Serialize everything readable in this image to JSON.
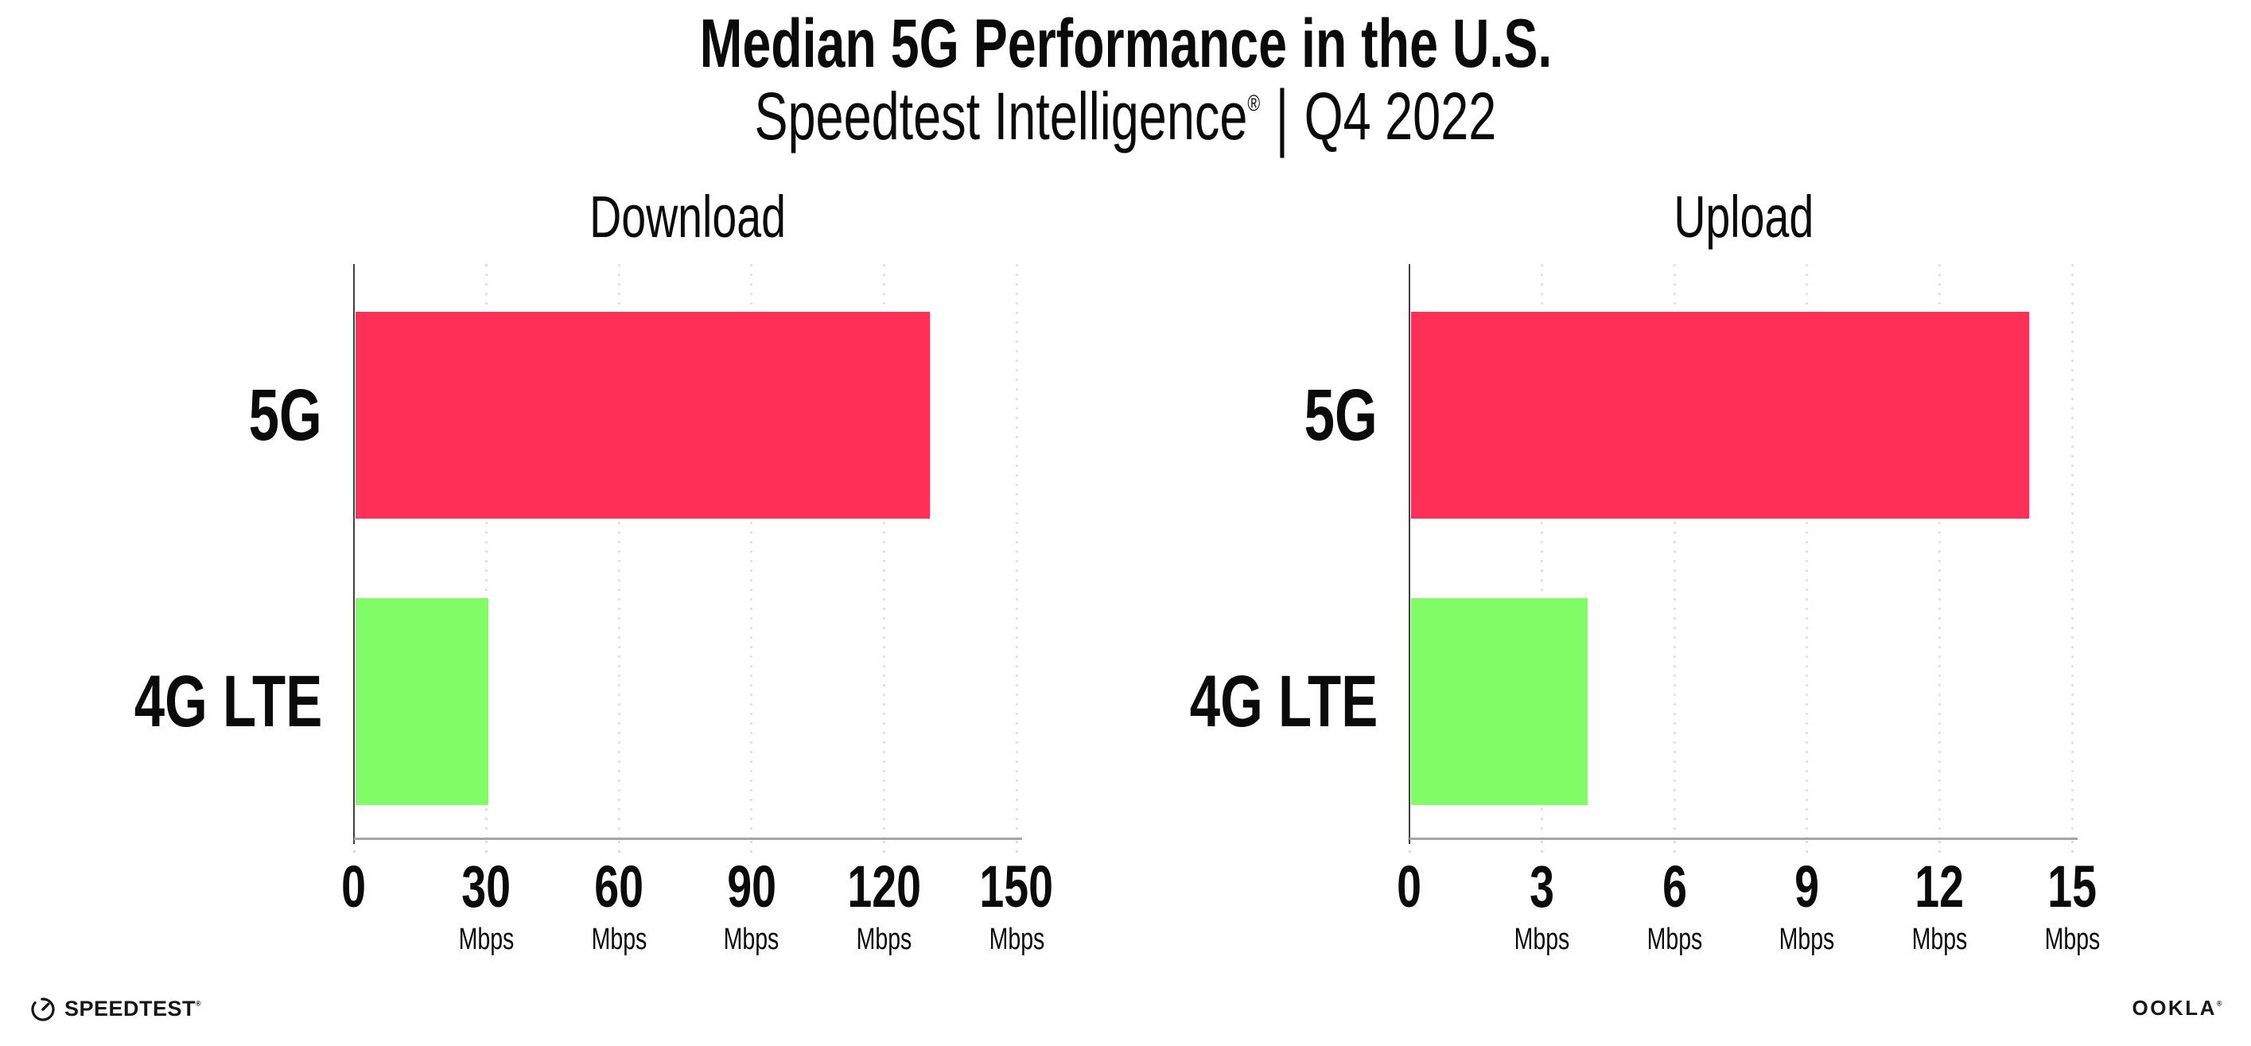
{
  "title": "Median 5G Performance in the U.S.",
  "subtitle": {
    "product": "Speedtest Intelligence",
    "registered_mark": "®",
    "separator": "|",
    "period": "Q4 2022"
  },
  "footer": {
    "speedtest_wordmark": "SPEEDTEST",
    "speedtest_mark": "®",
    "ookla_wordmark": "OOKLA",
    "ookla_mark": "®"
  },
  "colors": {
    "bar_5g": "#FF3058",
    "bar_4g_lte": "#7FFC66",
    "gridline": "#E1E1EA",
    "x_axis": "#A5A5A5",
    "y_axis": "#3F3F46",
    "text": "#0B0B0C"
  },
  "chart_data": [
    {
      "type": "bar",
      "orientation": "horizontal",
      "panel_title": "Download",
      "categories": [
        "5G",
        "4G LTE"
      ],
      "values": [
        130,
        30
      ],
      "unit": "Mbps",
      "xlim": [
        0,
        150
      ],
      "xticks": [
        0,
        30,
        60,
        90,
        120,
        150
      ],
      "grid": "dotted-vertical",
      "bar_colors": [
        "#FF3058",
        "#7FFC66"
      ]
    },
    {
      "type": "bar",
      "orientation": "horizontal",
      "panel_title": "Upload",
      "categories": [
        "5G",
        "4G LTE"
      ],
      "values": [
        14,
        4
      ],
      "unit": "Mbps",
      "xlim": [
        0,
        15
      ],
      "xticks": [
        0,
        3,
        6,
        9,
        12,
        15
      ],
      "grid": "dotted-vertical",
      "bar_colors": [
        "#FF3058",
        "#7FFC66"
      ]
    }
  ]
}
